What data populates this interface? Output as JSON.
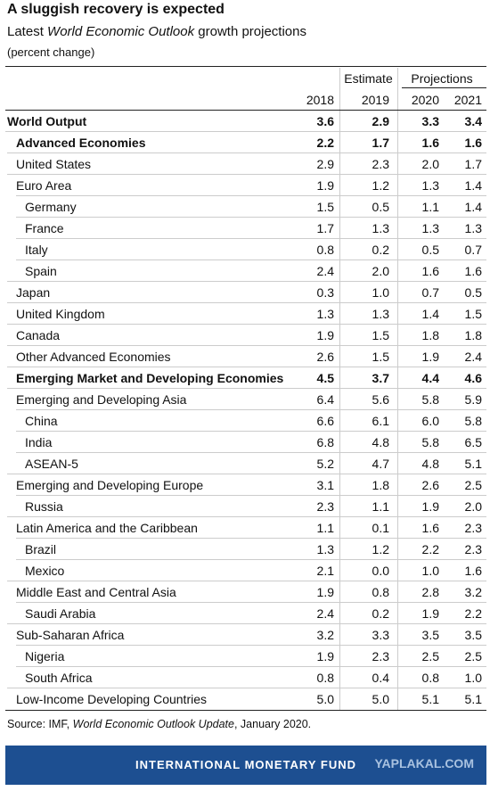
{
  "title": "A sluggish recovery is expected",
  "subtitle": [
    "Latest ",
    "World Economic Outlook",
    " growth projections"
  ],
  "unit_note": "(percent change)",
  "table": {
    "groups": [
      "Estimate",
      "Projections"
    ],
    "years": [
      "2018",
      "2019",
      "2020",
      "2021"
    ],
    "rows": [
      [
        "World Output",
        "3.6",
        "2.9",
        "3.3",
        "3.4"
      ],
      [
        "Advanced Economies",
        "2.2",
        "1.7",
        "1.6",
        "1.6"
      ],
      [
        "United States",
        "2.9",
        "2.3",
        "2.0",
        "1.7"
      ],
      [
        "Euro Area",
        "1.9",
        "1.2",
        "1.3",
        "1.4"
      ],
      [
        "Germany",
        "1.5",
        "0.5",
        "1.1",
        "1.4"
      ],
      [
        "France",
        "1.7",
        "1.3",
        "1.3",
        "1.3"
      ],
      [
        "Italy",
        "0.8",
        "0.2",
        "0.5",
        "0.7"
      ],
      [
        "Spain",
        "2.4",
        "2.0",
        "1.6",
        "1.6"
      ],
      [
        "Japan",
        "0.3",
        "1.0",
        "0.7",
        "0.5"
      ],
      [
        "United Kingdom",
        "1.3",
        "1.3",
        "1.4",
        "1.5"
      ],
      [
        "Canada",
        "1.9",
        "1.5",
        "1.8",
        "1.8"
      ],
      [
        "Other Advanced Economies",
        "2.6",
        "1.5",
        "1.9",
        "2.4"
      ],
      [
        "Emerging Market and Developing Economies",
        "4.5",
        "3.7",
        "4.4",
        "4.6"
      ],
      [
        "Emerging and Developing Asia",
        "6.4",
        "5.6",
        "5.8",
        "5.9"
      ],
      [
        "China",
        "6.6",
        "6.1",
        "6.0",
        "5.8"
      ],
      [
        "India",
        "6.8",
        "4.8",
        "5.8",
        "6.5"
      ],
      [
        "ASEAN-5",
        "5.2",
        "4.7",
        "4.8",
        "5.1"
      ],
      [
        "Emerging and Developing Europe",
        "3.1",
        "1.8",
        "2.6",
        "2.5"
      ],
      [
        "Russia",
        "2.3",
        "1.1",
        "1.9",
        "2.0"
      ],
      [
        "Latin America and the Caribbean",
        "1.1",
        "0.1",
        "1.6",
        "2.3"
      ],
      [
        "Brazil",
        "1.3",
        "1.2",
        "2.2",
        "2.3"
      ],
      [
        "Mexico",
        "2.1",
        "0.0",
        "1.0",
        "1.6"
      ],
      [
        "Middle East and Central Asia",
        "1.9",
        "0.8",
        "2.8",
        "3.2"
      ],
      [
        "Saudi Arabia",
        "2.4",
        "0.2",
        "1.9",
        "2.2"
      ],
      [
        "Sub-Saharan Africa",
        "3.2",
        "3.3",
        "3.5",
        "3.5"
      ],
      [
        "Nigeria",
        "1.9",
        "2.3",
        "2.5",
        "2.5"
      ],
      [
        "South Africa",
        "0.8",
        "0.4",
        "0.8",
        "1.0"
      ],
      [
        "Low-Income Developing Countries",
        "5.0",
        "5.0",
        "5.1",
        "5.1"
      ]
    ]
  },
  "source": [
    "Source: IMF, ",
    "World Economic Outlook Update",
    ", January 2020."
  ],
  "footer": "INTERNATIONAL MONETARY FUND",
  "watermark": "YAPLAKAL.COM"
}
